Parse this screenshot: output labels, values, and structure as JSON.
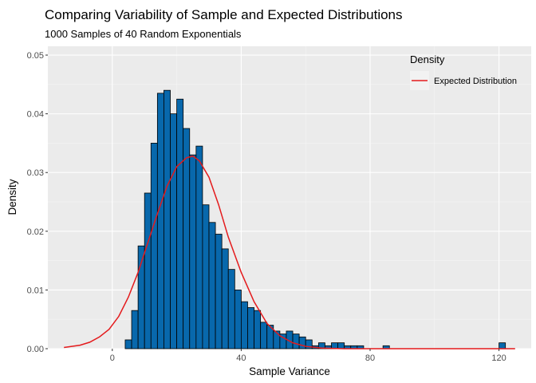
{
  "chart_data": {
    "type": "bar",
    "title": "Comparing Variability of Sample and Expected Distributions",
    "subtitle": "1000 Samples of 40 Random Exponentials",
    "xlabel": "Sample Variance",
    "ylabel": "Density",
    "xlim": [
      -20,
      130
    ],
    "ylim": [
      0,
      0.0515
    ],
    "x_ticks": [
      0,
      40,
      80,
      120
    ],
    "x_tick_labels": [
      "0",
      "40",
      "80",
      "120"
    ],
    "y_ticks": [
      0,
      0.01,
      0.02,
      0.03,
      0.04,
      0.05
    ],
    "y_tick_labels": [
      "0.00",
      "0.01",
      "0.02",
      "0.03",
      "0.04",
      "0.05"
    ],
    "grid": true,
    "legend": {
      "title": "Density",
      "position": "top-right",
      "entries": [
        {
          "label": "Expected Distribution",
          "color": "#e41a1c"
        }
      ]
    },
    "histogram": {
      "bin_width": 2,
      "fill": "#0868ac",
      "stroke": "#000000",
      "bins": [
        {
          "x0": 4,
          "x1": 6,
          "density": 0.0015
        },
        {
          "x0": 6,
          "x1": 8,
          "density": 0.0065
        },
        {
          "x0": 8,
          "x1": 10,
          "density": 0.0175
        },
        {
          "x0": 10,
          "x1": 12,
          "density": 0.0265
        },
        {
          "x0": 12,
          "x1": 14,
          "density": 0.035
        },
        {
          "x0": 14,
          "x1": 16,
          "density": 0.0435
        },
        {
          "x0": 16,
          "x1": 18,
          "density": 0.044
        },
        {
          "x0": 18,
          "x1": 20,
          "density": 0.04
        },
        {
          "x0": 20,
          "x1": 22,
          "density": 0.0425
        },
        {
          "x0": 22,
          "x1": 24,
          "density": 0.0375
        },
        {
          "x0": 24,
          "x1": 26,
          "density": 0.033
        },
        {
          "x0": 26,
          "x1": 28,
          "density": 0.0345
        },
        {
          "x0": 28,
          "x1": 30,
          "density": 0.0245
        },
        {
          "x0": 30,
          "x1": 32,
          "density": 0.0215
        },
        {
          "x0": 32,
          "x1": 34,
          "density": 0.0195
        },
        {
          "x0": 34,
          "x1": 36,
          "density": 0.017
        },
        {
          "x0": 36,
          "x1": 38,
          "density": 0.0135
        },
        {
          "x0": 38,
          "x1": 40,
          "density": 0.01
        },
        {
          "x0": 40,
          "x1": 42,
          "density": 0.008
        },
        {
          "x0": 42,
          "x1": 44,
          "density": 0.007
        },
        {
          "x0": 44,
          "x1": 46,
          "density": 0.0065
        },
        {
          "x0": 46,
          "x1": 48,
          "density": 0.0045
        },
        {
          "x0": 48,
          "x1": 50,
          "density": 0.004
        },
        {
          "x0": 50,
          "x1": 52,
          "density": 0.003
        },
        {
          "x0": 52,
          "x1": 54,
          "density": 0.0025
        },
        {
          "x0": 54,
          "x1": 56,
          "density": 0.003
        },
        {
          "x0": 56,
          "x1": 58,
          "density": 0.0025
        },
        {
          "x0": 58,
          "x1": 60,
          "density": 0.002
        },
        {
          "x0": 60,
          "x1": 62,
          "density": 0.0015
        },
        {
          "x0": 62,
          "x1": 64,
          "density": 0.0005
        },
        {
          "x0": 64,
          "x1": 66,
          "density": 0.001
        },
        {
          "x0": 66,
          "x1": 68,
          "density": 0.0005
        },
        {
          "x0": 68,
          "x1": 70,
          "density": 0.001
        },
        {
          "x0": 70,
          "x1": 72,
          "density": 0.001
        },
        {
          "x0": 72,
          "x1": 74,
          "density": 0.0005
        },
        {
          "x0": 74,
          "x1": 76,
          "density": 0.0005
        },
        {
          "x0": 76,
          "x1": 78,
          "density": 0.0005
        },
        {
          "x0": 84,
          "x1": 86,
          "density": 0.0005
        },
        {
          "x0": 120,
          "x1": 122,
          "density": 0.001
        }
      ]
    },
    "expected_curve": {
      "color": "#e41a1c",
      "points": [
        [
          -15,
          0.0002
        ],
        [
          -10,
          0.0006
        ],
        [
          -7,
          0.0011
        ],
        [
          -4,
          0.002
        ],
        [
          -1,
          0.0033
        ],
        [
          2,
          0.0055
        ],
        [
          5,
          0.0088
        ],
        [
          8,
          0.013
        ],
        [
          11,
          0.018
        ],
        [
          14,
          0.023
        ],
        [
          17,
          0.0277
        ],
        [
          20,
          0.031
        ],
        [
          23,
          0.0325
        ],
        [
          25,
          0.0328
        ],
        [
          27,
          0.032
        ],
        [
          30,
          0.0292
        ],
        [
          33,
          0.0245
        ],
        [
          36,
          0.019
        ],
        [
          40,
          0.013
        ],
        [
          44,
          0.008
        ],
        [
          48,
          0.0043
        ],
        [
          52,
          0.0022
        ],
        [
          56,
          0.001
        ],
        [
          60,
          0.0004
        ],
        [
          65,
          0.0001
        ],
        [
          72,
          0.0
        ],
        [
          90,
          0.0
        ],
        [
          110,
          0.0
        ],
        [
          125,
          0.0
        ]
      ]
    }
  }
}
